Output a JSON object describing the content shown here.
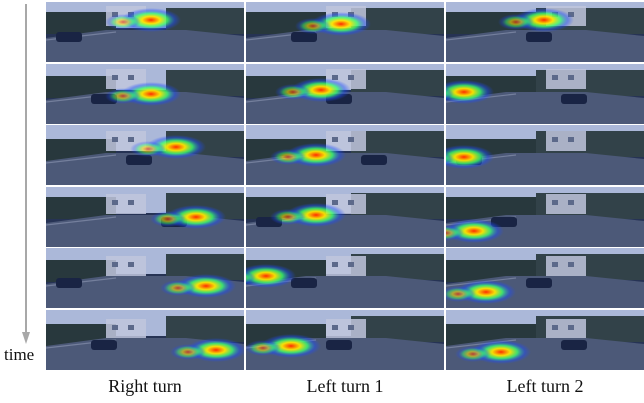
{
  "axis": {
    "label": "time"
  },
  "columns": [
    {
      "label": "Right turn"
    },
    {
      "label": "Left turn 1"
    },
    {
      "label": "Left turn 2"
    }
  ],
  "frames_per_column": 6,
  "colors": {
    "heat_core": "#ff2a00",
    "heat_mid": "#ffe600",
    "heat_outer": "#3cff6e",
    "heat_halo": "#1e4dff",
    "sky": "#cdd6e6",
    "road": "#5a6270",
    "foliage": "#2e3a28"
  }
}
